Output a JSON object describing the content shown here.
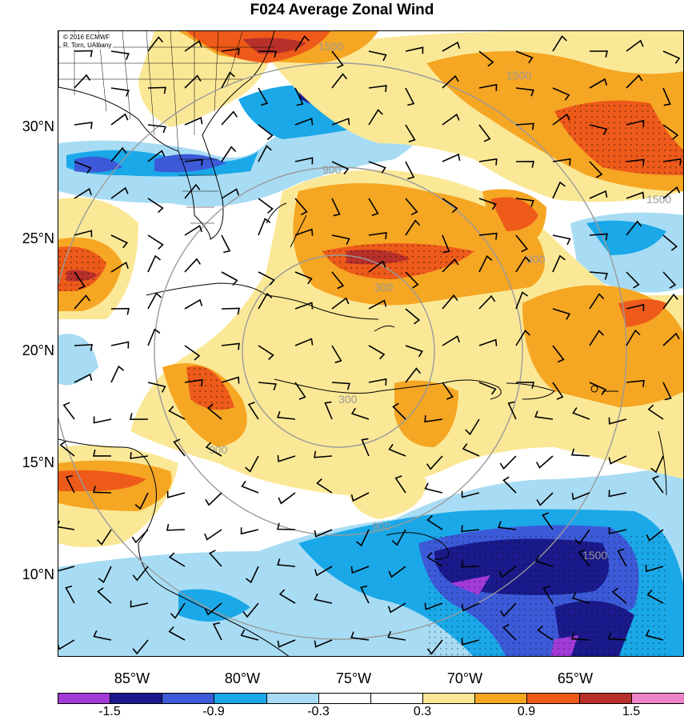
{
  "title": "F024 Average Zonal Wind",
  "credit": {
    "line1": "© 2016 ECMWF",
    "line2": "R. Torn, UAlbany"
  },
  "lat_labels": [
    "30°N",
    "25°N",
    "20°N",
    "15°N",
    "10°N"
  ],
  "lon_labels": [
    "85°W",
    "80°W",
    "75°W",
    "70°W",
    "65°W"
  ],
  "colorbar": {
    "colors": [
      "#a23ad8",
      "#1a1a8c",
      "#3c5ad8",
      "#1aa8e8",
      "#a8dcf4",
      "#ffffff",
      "#ffffff",
      "#fbe896",
      "#f5a623",
      "#ee5a1a",
      "#b8302a",
      "#ee82c8"
    ],
    "labels": [
      "-1.5",
      "-0.9",
      "-0.3",
      "0.3",
      "0.9",
      "1.5"
    ]
  },
  "range_rings": [
    "300",
    "900",
    "1500"
  ]
}
